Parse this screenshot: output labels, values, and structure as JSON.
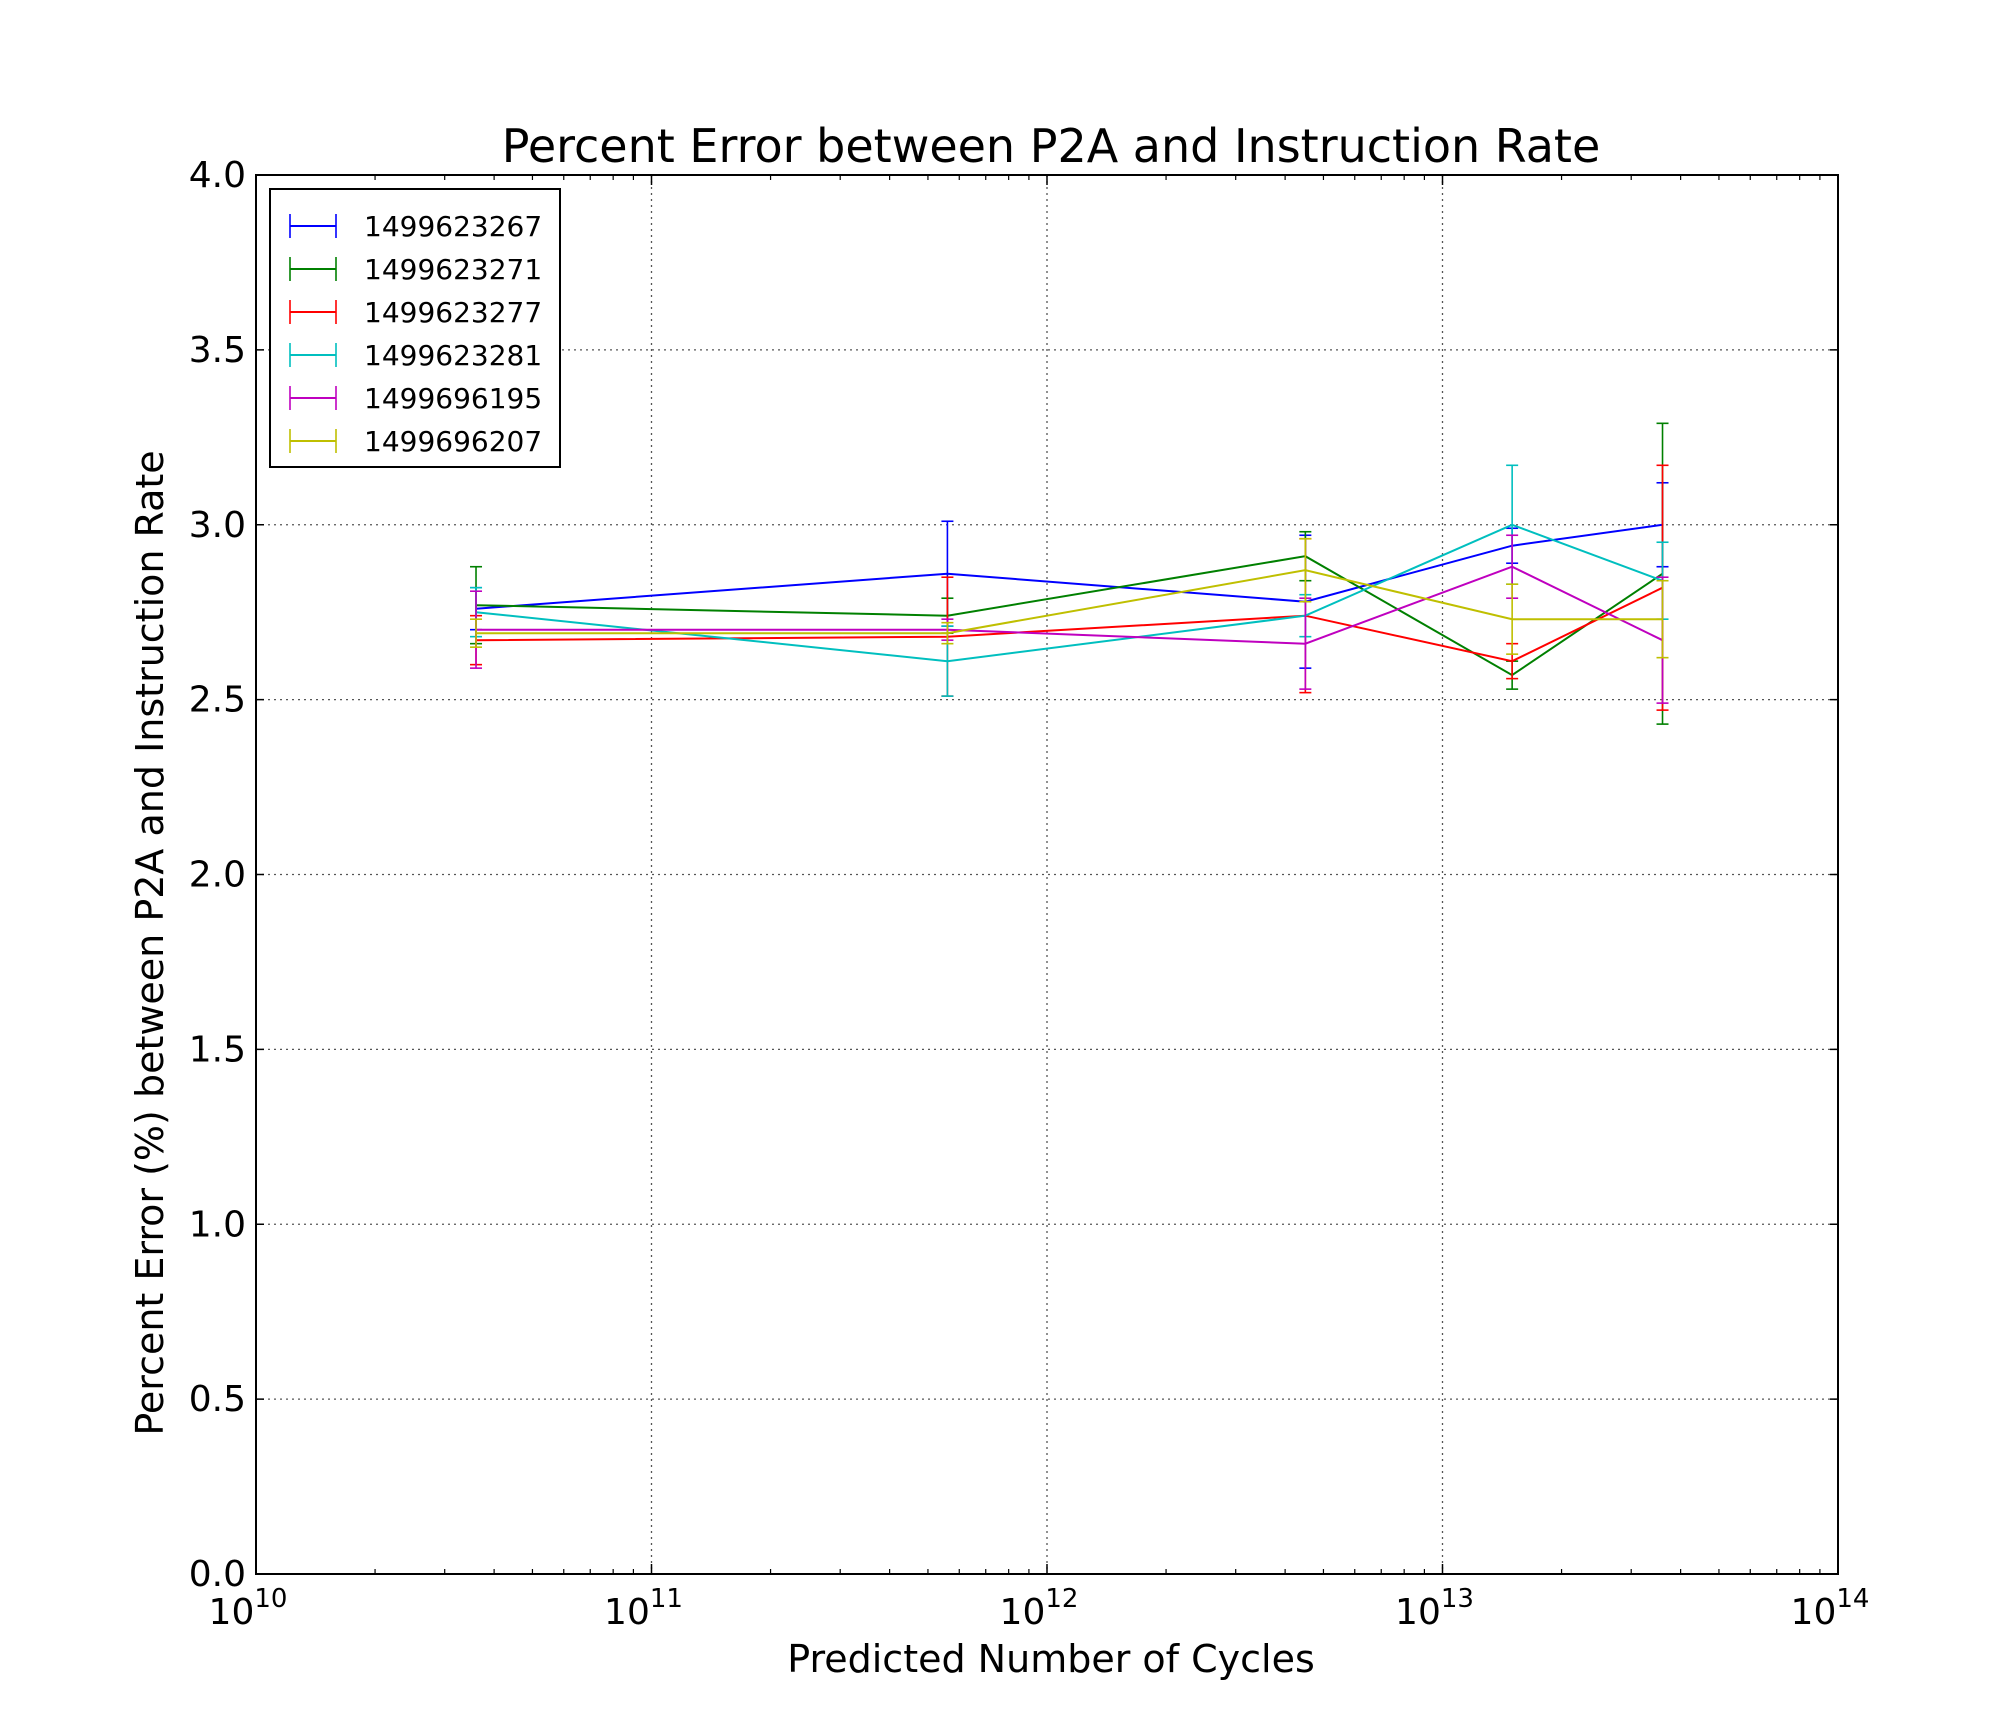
{
  "chart_data": {
    "type": "line",
    "title": "Percent Error between P2A and Instruction Rate",
    "xlabel": "Predicted Number of Cycles",
    "ylabel": "Percent Error (%) between P2A and Instruction Rate",
    "xscale": "log",
    "xlim": [
      10000000000.0,
      100000000000000.0
    ],
    "ylim": [
      0.0,
      4.0
    ],
    "grid": true,
    "legend_position": "upper-left",
    "x_ticks": [
      {
        "value": 10000000000.0,
        "base": "10",
        "exp": "10"
      },
      {
        "value": 100000000000.0,
        "base": "10",
        "exp": "11"
      },
      {
        "value": 1000000000000.0,
        "base": "10",
        "exp": "12"
      },
      {
        "value": 10000000000000.0,
        "base": "10",
        "exp": "13"
      },
      {
        "value": 100000000000000.0,
        "base": "10",
        "exp": "14"
      }
    ],
    "y_ticks": [
      {
        "value": 0.0,
        "label": "0.0"
      },
      {
        "value": 0.5,
        "label": "0.5"
      },
      {
        "value": 1.0,
        "label": "1.0"
      },
      {
        "value": 1.5,
        "label": "1.5"
      },
      {
        "value": 2.0,
        "label": "2.0"
      },
      {
        "value": 2.5,
        "label": "2.5"
      },
      {
        "value": 3.0,
        "label": "3.0"
      },
      {
        "value": 3.5,
        "label": "3.5"
      },
      {
        "value": 4.0,
        "label": "4.0"
      }
    ],
    "x": [
      36000000000.0,
      560000000000.0,
      4500000000000.0,
      15000000000000.0,
      36000000000000.0
    ],
    "series": [
      {
        "name": "1499623267",
        "color": "#0000ff",
        "values": [
          2.76,
          2.86,
          2.78,
          2.94,
          3.0
        ],
        "errors": [
          0.06,
          0.15,
          0.19,
          0.05,
          0.12
        ]
      },
      {
        "name": "1499623271",
        "color": "#008000",
        "values": [
          2.77,
          2.74,
          2.91,
          2.57,
          2.86
        ],
        "errors": [
          0.11,
          0.05,
          0.07,
          0.04,
          0.43
        ]
      },
      {
        "name": "1499623277",
        "color": "#ff0000",
        "values": [
          2.67,
          2.68,
          2.74,
          2.61,
          2.82
        ],
        "errors": [
          0.07,
          0.17,
          0.22,
          0.05,
          0.35
        ]
      },
      {
        "name": "1499623281",
        "color": "#00bfbf",
        "values": [
          2.75,
          2.61,
          2.74,
          3.0,
          2.84
        ],
        "errors": [
          0.07,
          0.1,
          0.06,
          0.17,
          0.11
        ]
      },
      {
        "name": "1499696195",
        "color": "#bf00bf",
        "values": [
          2.7,
          2.7,
          2.66,
          2.88,
          2.67
        ],
        "errors": [
          0.11,
          0.03,
          0.13,
          0.09,
          0.18
        ]
      },
      {
        "name": "1499696207",
        "color": "#bfbf00",
        "values": [
          2.69,
          2.69,
          2.87,
          2.73,
          2.73
        ],
        "errors": [
          0.04,
          0.03,
          0.09,
          0.1,
          0.11
        ]
      }
    ]
  }
}
